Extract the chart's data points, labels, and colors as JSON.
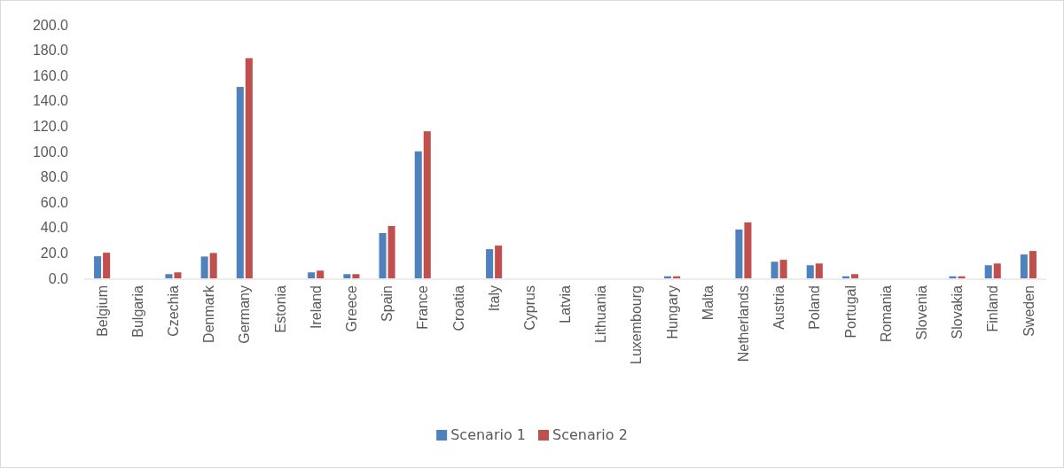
{
  "chart_data": {
    "type": "bar",
    "categories": [
      "Belgium",
      "Bulgaria",
      "Czechia",
      "Denmark",
      "Germany",
      "Estonia",
      "Ireland",
      "Greece",
      "Spain",
      "France",
      "Croatia",
      "Italy",
      "Cyprus",
      "Latvia",
      "Lithuania",
      "Luxembourg",
      "Hungary",
      "Malta",
      "Netherlands",
      "Austria",
      "Poland",
      "Portugal",
      "Romania",
      "Slovenia",
      "Slovakia",
      "Finland",
      "Sweden"
    ],
    "series": [
      {
        "name": "Scenario 1",
        "color": "#4f81bd",
        "values": [
          17.4,
          0,
          3.3,
          17.2,
          151,
          0,
          4.7,
          3.3,
          35.7,
          100.2,
          0,
          23.0,
          0,
          0,
          0,
          0,
          1.6,
          0,
          38.5,
          13.1,
          10.3,
          1.6,
          0,
          0,
          1.6,
          10.3,
          18.8
        ]
      },
      {
        "name": "Scenario 2",
        "color": "#c0504d",
        "values": [
          20.2,
          0,
          4.7,
          20.0,
          173.7,
          0,
          6.1,
          3.3,
          41.3,
          116,
          0,
          25.8,
          0,
          0,
          0,
          0,
          1.6,
          0,
          44.1,
          14.6,
          11.7,
          3.3,
          0,
          0,
          1.6,
          11.7,
          21.6
        ]
      }
    ],
    "ylim": [
      0,
      200
    ],
    "yticks": [
      {
        "value": 0,
        "label": "0.0"
      },
      {
        "value": 20,
        "label": "20.0"
      },
      {
        "value": 40,
        "label": "40.0"
      },
      {
        "value": 60,
        "label": "60.0"
      },
      {
        "value": 80,
        "label": "80.0"
      },
      {
        "value": 100,
        "label": "100.0"
      },
      {
        "value": 120,
        "label": "120.0"
      },
      {
        "value": 140,
        "label": "140.0"
      },
      {
        "value": 160,
        "label": "160.0"
      },
      {
        "value": 180,
        "label": "180.0"
      },
      {
        "value": 200,
        "label": "200.0"
      }
    ],
    "legend": "bottom"
  }
}
